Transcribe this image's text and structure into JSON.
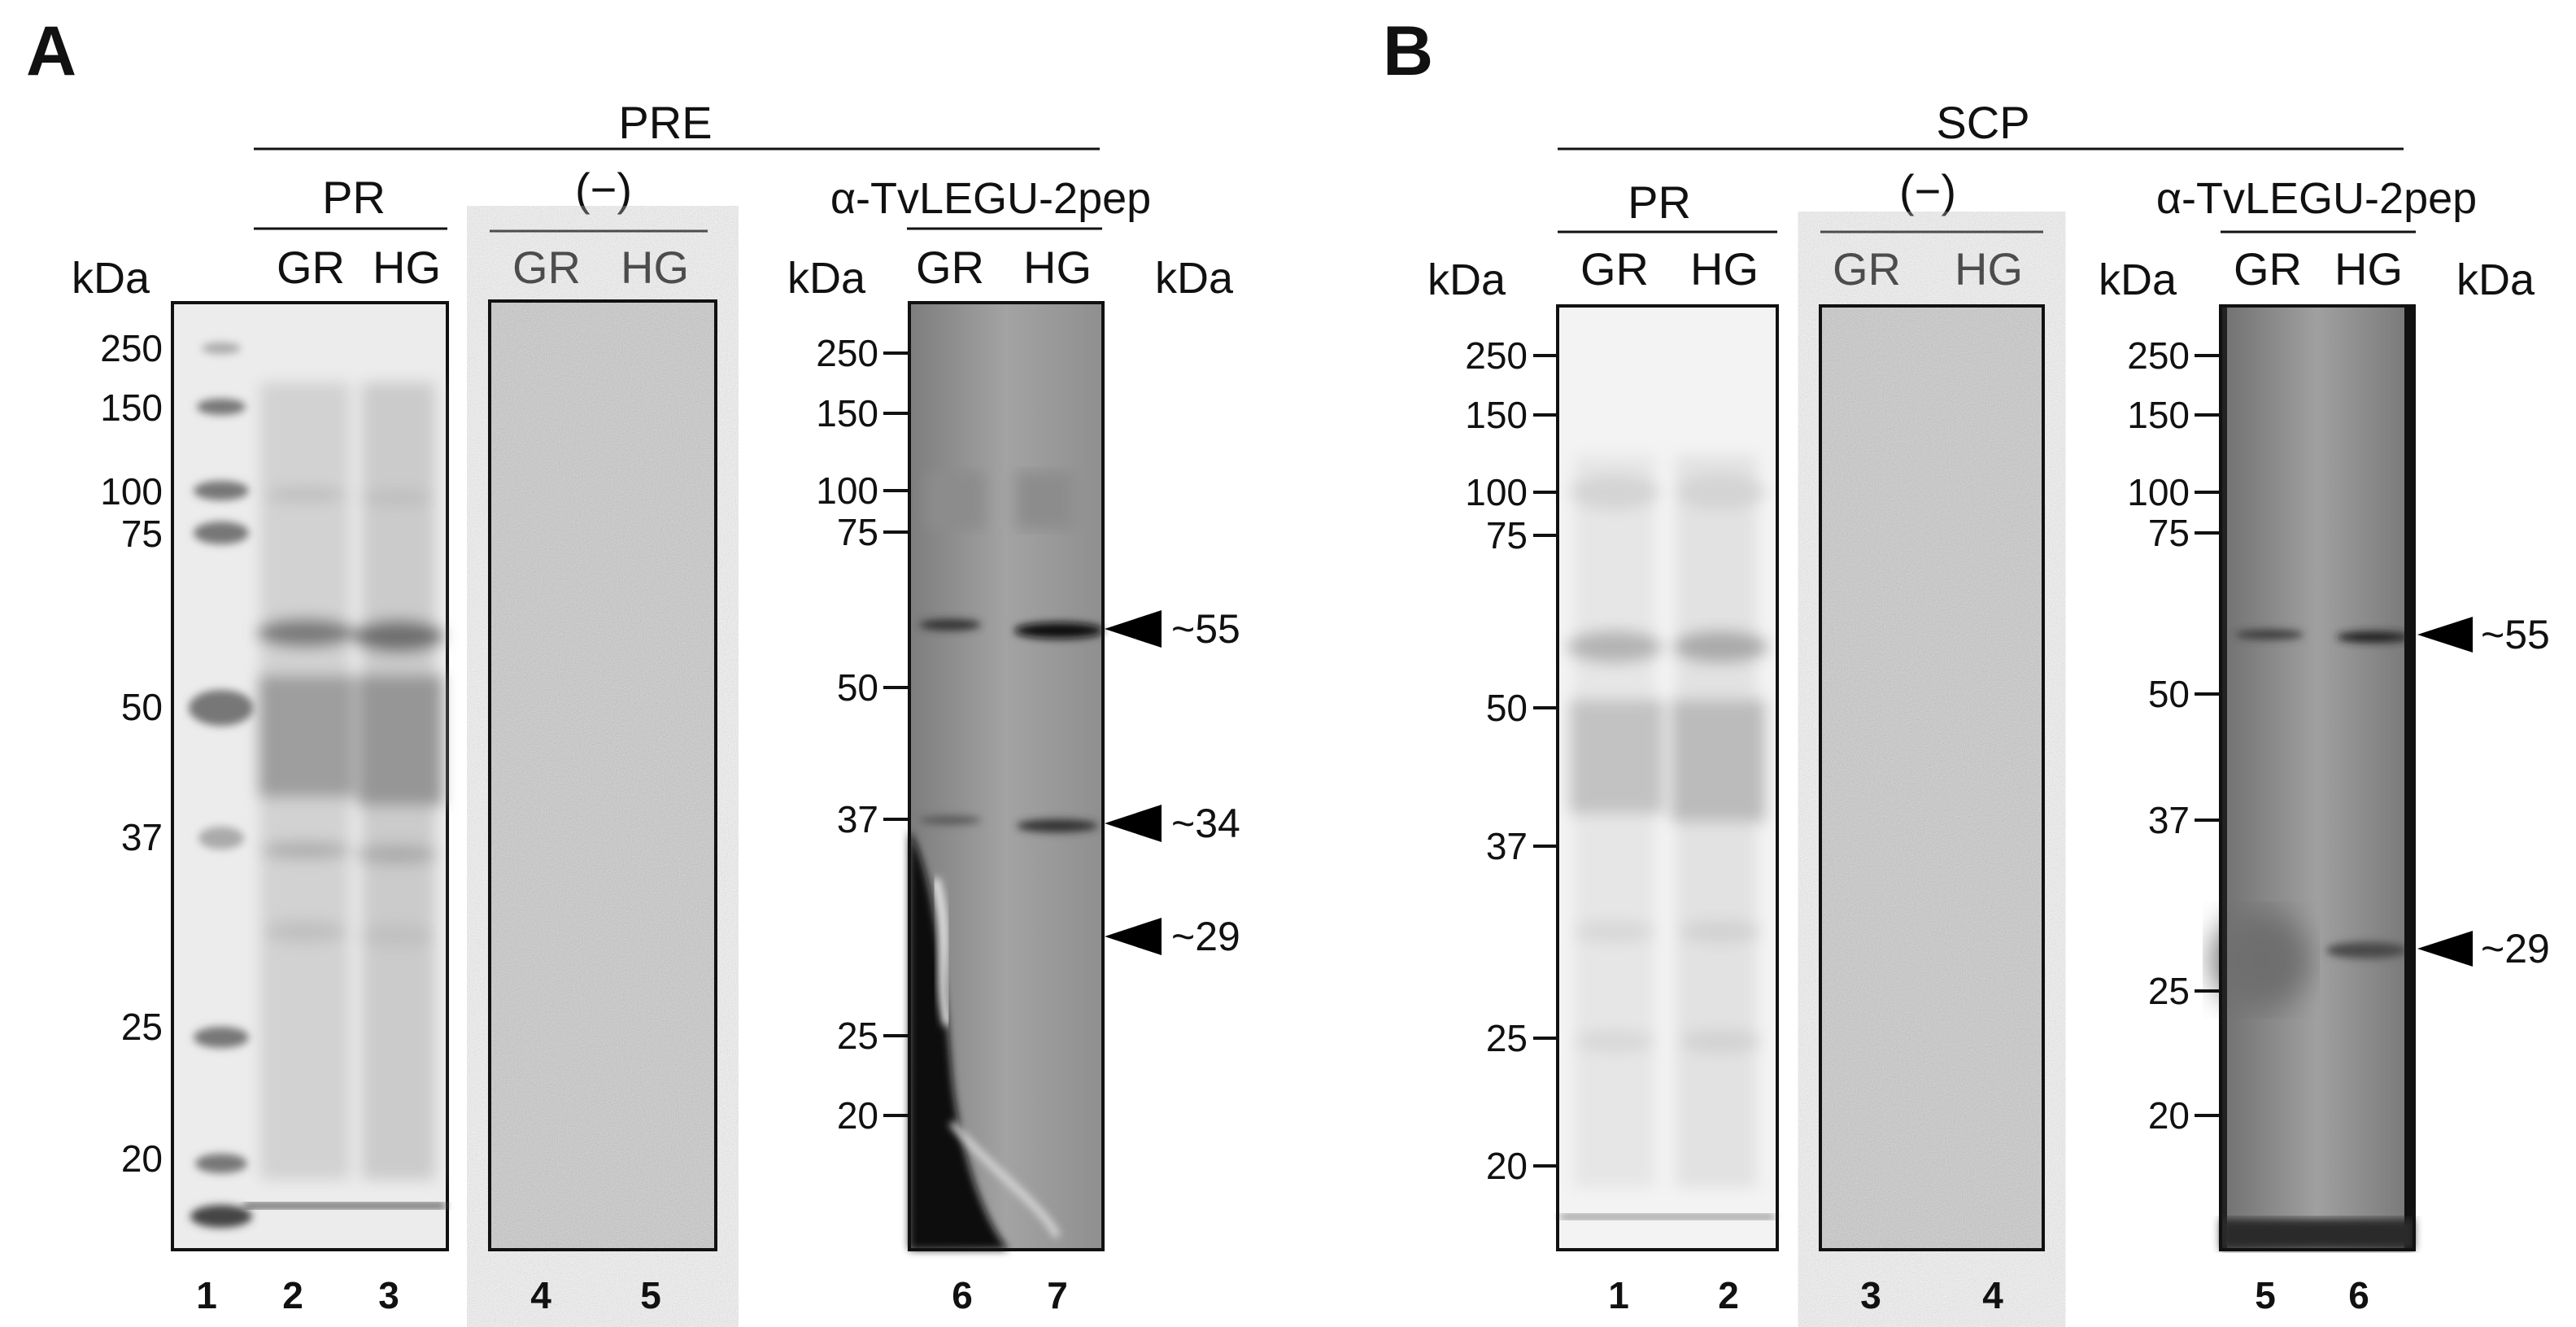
{
  "panels": [
    {
      "letter": "A",
      "group_title": "PRE",
      "pr_label": "PR",
      "neg_label": "(−)",
      "ab_label": "α-TvLEGU-2pep",
      "lanes_gel1": [
        "GR",
        "HG"
      ],
      "lanes_gel2": [
        "GR",
        "HG"
      ],
      "lanes_blot": [
        "GR",
        "HG"
      ],
      "kda": "kDa",
      "gel_ladder": [
        "250",
        "150",
        "100",
        "75",
        "50",
        "37",
        "25",
        "20"
      ],
      "blot_ladder": [
        "250",
        "150",
        "100",
        "75",
        "50",
        "37",
        "25",
        "20"
      ],
      "arrows": [
        "~55",
        "~34",
        "~29"
      ],
      "lane_numbers": [
        "1",
        "2",
        "3",
        "4",
        "5",
        "6",
        "7"
      ]
    },
    {
      "letter": "B",
      "group_title": "SCP",
      "pr_label": "PR",
      "neg_label": "(−)",
      "ab_label": "α-TvLEGU-2pep",
      "lanes_gel1": [
        "GR",
        "HG"
      ],
      "lanes_gel2": [
        "GR",
        "HG"
      ],
      "lanes_blot": [
        "GR",
        "HG"
      ],
      "kda": "kDa",
      "gel_ladder": [
        "250",
        "150",
        "100",
        "75",
        "50",
        "37",
        "25",
        "20"
      ],
      "blot_ladder": [
        "250",
        "150",
        "100",
        "75",
        "50",
        "37",
        "20"
      ],
      "arrows": [
        "~55",
        "~29"
      ],
      "lane_numbers": [
        "1",
        "2",
        "3",
        "4",
        "5",
        "6"
      ]
    }
  ]
}
